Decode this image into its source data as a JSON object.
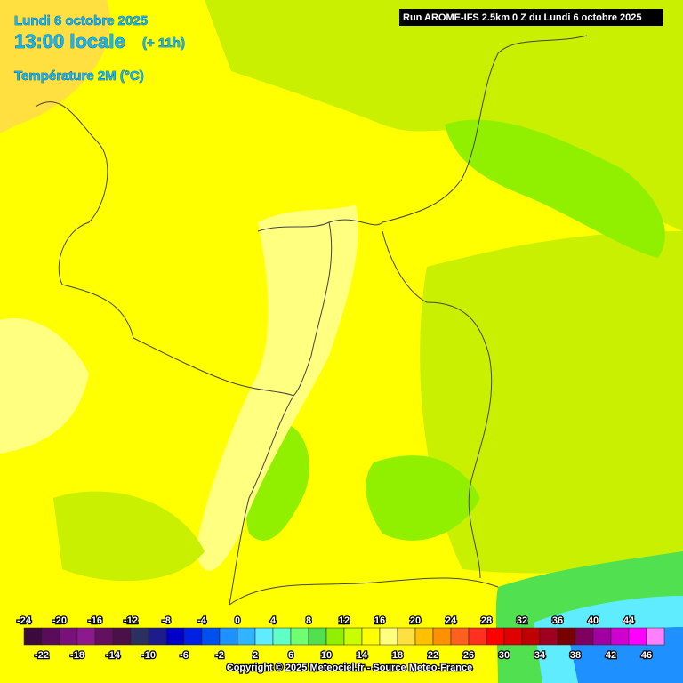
{
  "header": {
    "date": "Lundi 6 octobre 2025",
    "time": "13:00 locale",
    "offset": "(+ 11h)",
    "variable": "Température 2M (°C)"
  },
  "run": "Run AROME-IFS 2.5km 0 Z du Lundi 6 octobre 2025",
  "legend": {
    "values": [
      -24,
      -22,
      -20,
      -18,
      -16,
      -14,
      -12,
      -10,
      -8,
      -6,
      -4,
      -2,
      0,
      2,
      4,
      6,
      8,
      10,
      12,
      14,
      16,
      18,
      20,
      22,
      24,
      26,
      28,
      30,
      32,
      34,
      36,
      38,
      40,
      42,
      44,
      46
    ],
    "colors": [
      "#3c0a3c",
      "#5a0c5a",
      "#78127a",
      "#8c1a8c",
      "#641060",
      "#4a1048",
      "#2c3060",
      "#1c1c8a",
      "#0000c8",
      "#0020e6",
      "#0050f0",
      "#1e90ff",
      "#30b4ff",
      "#60ecff",
      "#60ffc8",
      "#70ff70",
      "#50e050",
      "#90f000",
      "#c8ff00",
      "#ffff00",
      "#ffff80",
      "#ffe040",
      "#ffc000",
      "#ff9000",
      "#ff6020",
      "#ff3020",
      "#ff0000",
      "#e00000",
      "#c00000",
      "#a00020",
      "#780000",
      "#800060",
      "#a000a0",
      "#d000d0",
      "#ff00ff",
      "#ff80ff"
    ]
  },
  "copyright": "Copyright © 2025 Meteociel.fr - Source Meteo-France"
}
